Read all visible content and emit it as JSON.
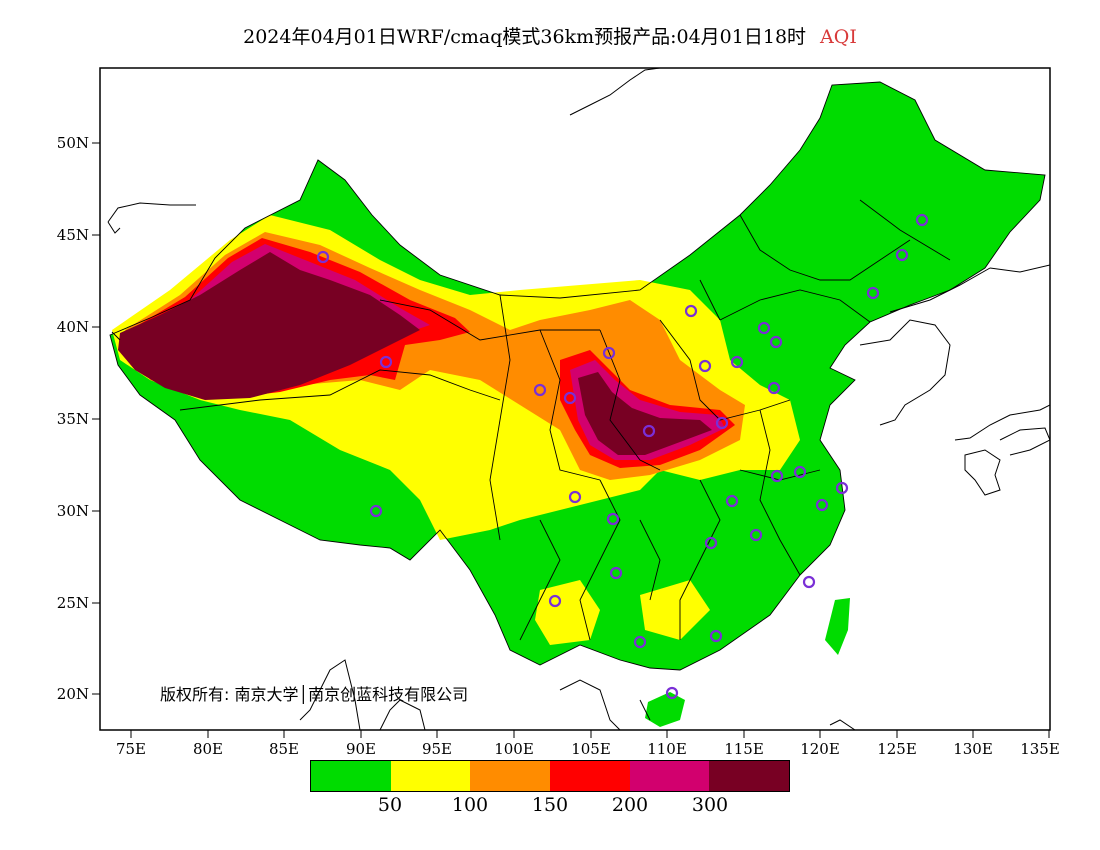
{
  "title": {
    "text": "2024年04月01日WRF/cmaq模式36km预报产品:04月01日18时",
    "highlight": "AQI",
    "highlight_color": "#d83a3a"
  },
  "axes": {
    "lat_labels": [
      "50N",
      "45N",
      "40N",
      "35N",
      "30N",
      "25N",
      "20N"
    ],
    "lon_labels": [
      "75E",
      "80E",
      "85E",
      "90E",
      "95E",
      "100E",
      "105E",
      "110E",
      "115E",
      "120E",
      "125E",
      "130E",
      "135E"
    ]
  },
  "copyright": "版权所有: 南京大学│南京创蓝科技有限公司",
  "legend": {
    "colors": [
      "#00dc00",
      "#ffff00",
      "#ff8c00",
      "#ff0000",
      "#d2006e",
      "#780023"
    ],
    "labels": [
      "50",
      "100",
      "150",
      "200",
      "300"
    ]
  },
  "marker_color": "#7a2fd6",
  "levels": {
    "good": "#00dc00",
    "moderate": "#ffff00",
    "sensitive": "#ff8c00",
    "unhealthy": "#ff0000",
    "very_unhealthy": "#d2006e",
    "hazardous": "#780023"
  }
}
